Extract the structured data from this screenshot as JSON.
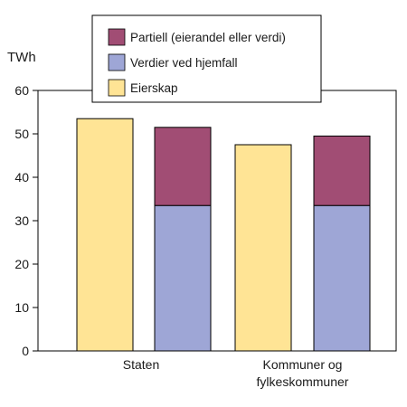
{
  "chart_data": {
    "type": "bar",
    "stacked": true,
    "ylabel": "TWh",
    "ylim": [
      0,
      60
    ],
    "yticks": [
      0,
      10,
      20,
      30,
      40,
      50,
      60
    ],
    "grid": false,
    "legend_position": "top",
    "groups": [
      {
        "label_lines": [
          "Staten"
        ],
        "bars": [
          "Eierskap",
          "Hjemfall"
        ]
      },
      {
        "label_lines": [
          "Kommuner og",
          "fylkeskommuner"
        ],
        "bars": [
          "Eierskap",
          "Hjemfall"
        ]
      }
    ],
    "series": [
      {
        "name": "Partiell (eierandel eller verdi)",
        "color": "#a14d74",
        "values": [
          null,
          18,
          null,
          16
        ]
      },
      {
        "name": "Verdier ved hjemfall",
        "color": "#9ea6d6",
        "values": [
          null,
          33.5,
          null,
          33.5
        ]
      },
      {
        "name": "Eierskap",
        "color": "#ffe495",
        "values": [
          53.5,
          null,
          47.5,
          null
        ]
      }
    ],
    "bar_order": [
      "Eierskap",
      "Hjemfall",
      "Eierskap",
      "Hjemfall"
    ],
    "stack_order": [
      "Verdier ved hjemfall",
      "Partiell (eierandel eller verdi)"
    ]
  }
}
